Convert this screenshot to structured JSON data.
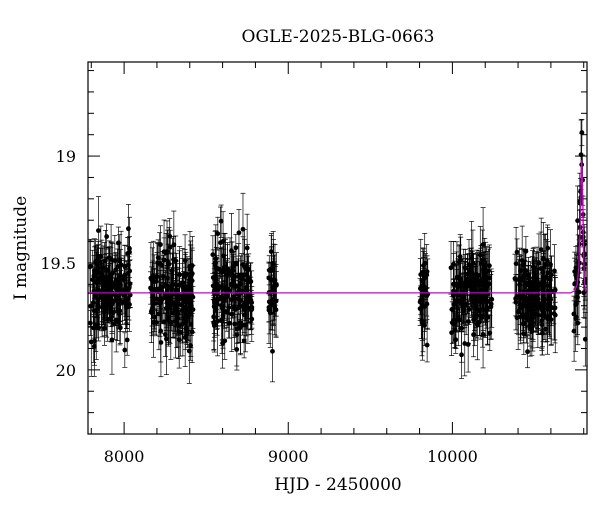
{
  "chart_data": {
    "type": "scatter",
    "title": "OGLE-2025-BLG-0663",
    "xlabel": "HJD - 2450000",
    "ylabel": "I magnitude",
    "xlim": [
      7780,
      10820
    ],
    "ylim": [
      20.3,
      18.56
    ],
    "y_inverted": true,
    "x_ticks": [
      8000,
      9000,
      10000
    ],
    "y_ticks": [
      19,
      19.5,
      20
    ],
    "y_tick_labels": [
      "19",
      "19.5",
      "20"
    ],
    "grid": false,
    "legend": "none",
    "colors": {
      "points": "#000000",
      "model": "#cc00cc",
      "frame": "#000000"
    },
    "observing_seasons": [
      {
        "start": 7790,
        "end": 8040
      },
      {
        "start": 8160,
        "end": 8420
      },
      {
        "start": 8540,
        "end": 8780
      },
      {
        "start": 8880,
        "end": 8930
      },
      {
        "start": 9800,
        "end": 9850
      },
      {
        "start": 9990,
        "end": 10240
      },
      {
        "start": 10380,
        "end": 10630
      },
      {
        "start": 10740,
        "end": 10810
      }
    ],
    "series": [
      {
        "kind": "model",
        "points": [
          [
            7780,
            19.64
          ],
          [
            10720,
            19.64
          ],
          [
            10745,
            19.63
          ],
          [
            10760,
            19.6
          ],
          [
            10770,
            19.52
          ],
          [
            10778,
            19.35
          ],
          [
            10784,
            19.15
          ],
          [
            10788,
            19.02
          ],
          [
            10792,
            19.1
          ],
          [
            10796,
            19.3
          ],
          [
            10801,
            19.5
          ],
          [
            10806,
            19.6
          ],
          [
            10812,
            19.63
          ],
          [
            10820,
            19.64
          ]
        ]
      },
      {
        "kind": "observations",
        "baseline_mag": 19.64,
        "scatter_mag": 0.1,
        "typical_error_mag": 0.11,
        "count": 900
      }
    ]
  }
}
